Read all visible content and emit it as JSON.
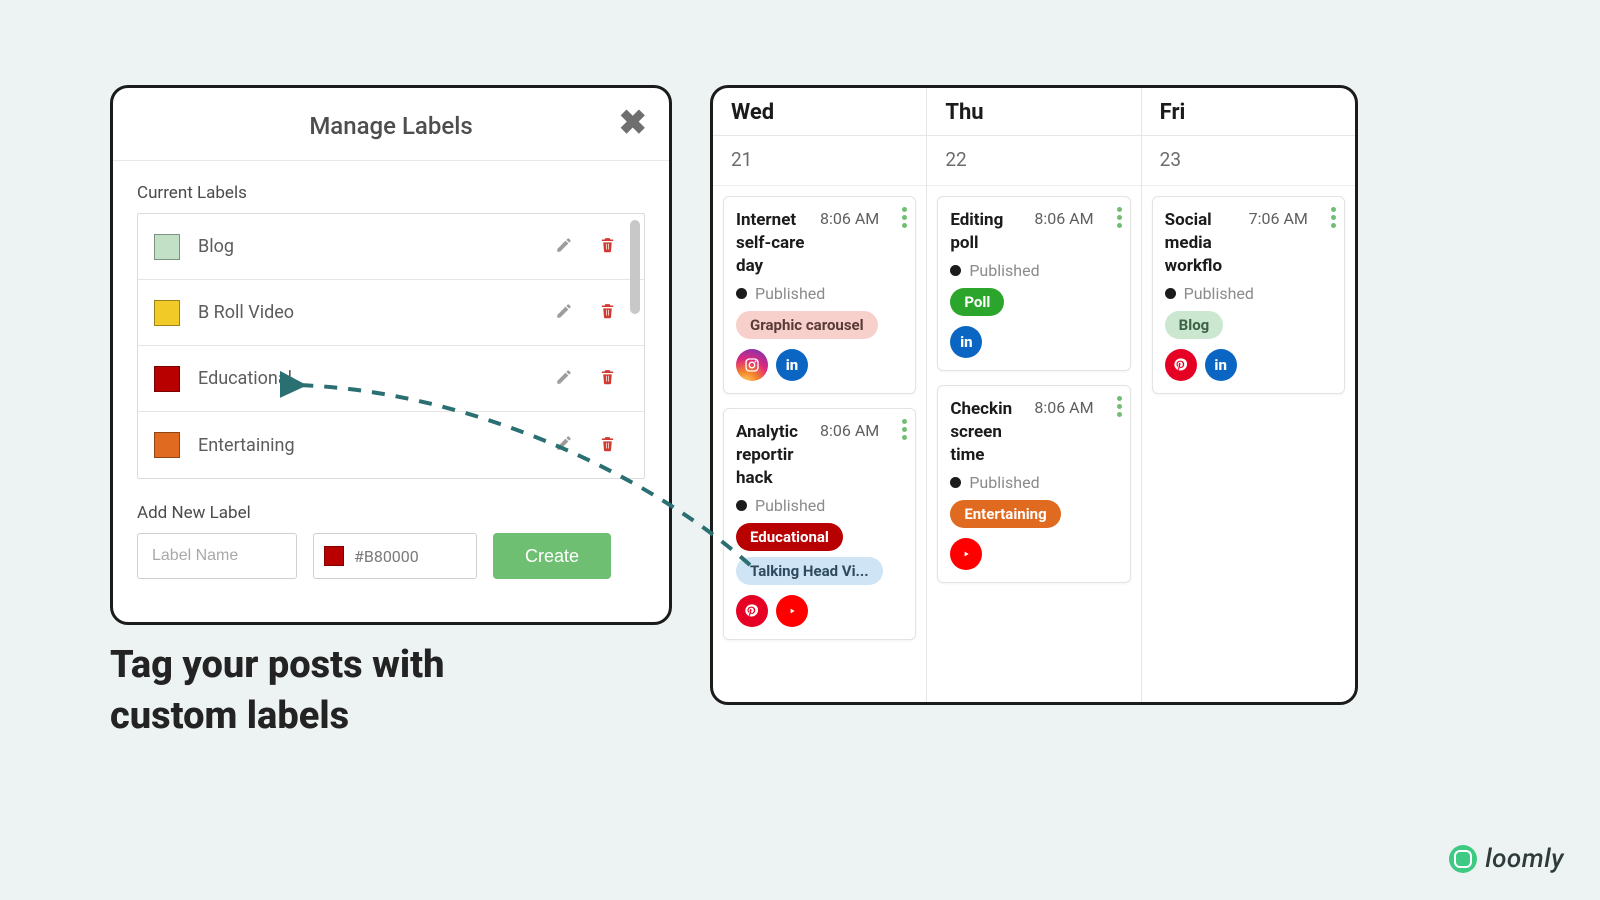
{
  "labels": {
    "title": "Manage Labels",
    "currentHeading": "Current Labels",
    "list": [
      {
        "name": "Blog",
        "color": "#c2e0c6"
      },
      {
        "name": "B Roll Video",
        "color": "#f2ca27"
      },
      {
        "name": "Educational",
        "color": "#b80000"
      },
      {
        "name": "Entertaining",
        "color": "#e06a1f"
      }
    ],
    "addHeading": "Add New Label",
    "namePlaceholder": "Label Name",
    "colorValue": "#B80000",
    "createLabel": "Create"
  },
  "caption": "Tag your posts with custom labels",
  "calendar": {
    "columns": [
      {
        "day": "Wed",
        "date": "21",
        "posts": [
          {
            "title": "Internet self-care day",
            "time": "8:06 AM",
            "status": "Published",
            "tags": [
              {
                "text": "Graphic carousel",
                "bg": "#f7d0cc",
                "fg": "#5a3a38"
              }
            ],
            "channels": [
              "instagram",
              "linkedin"
            ]
          },
          {
            "title": "Analytic reportir hack",
            "time": "8:06 AM",
            "status": "Published",
            "tags": [
              {
                "text": "Educational",
                "bg": "#b80000",
                "fg": "#ffffff"
              },
              {
                "text": "Talking Head Vi...",
                "bg": "#cfe4f4",
                "fg": "#2f4a5e"
              }
            ],
            "channels": [
              "pinterest",
              "youtube"
            ]
          }
        ]
      },
      {
        "day": "Thu",
        "date": "22",
        "posts": [
          {
            "title": "Editing poll",
            "time": "8:06 AM",
            "status": "Published",
            "tags": [
              {
                "text": "Poll",
                "bg": "#2ca52c",
                "fg": "#ffffff"
              }
            ],
            "channels": [
              "linkedin"
            ]
          },
          {
            "title": "Checkin screen time",
            "time": "8:06 AM",
            "status": "Published",
            "tags": [
              {
                "text": "Entertaining",
                "bg": "#e06a1f",
                "fg": "#ffffff"
              }
            ],
            "channels": [
              "youtube"
            ]
          }
        ]
      },
      {
        "day": "Fri",
        "date": "23",
        "posts": [
          {
            "title": "Social media workflo",
            "time": "7:06 AM",
            "status": "Published",
            "tags": [
              {
                "text": "Blog",
                "bg": "#cbe7cf",
                "fg": "#3d6245"
              }
            ],
            "channels": [
              "pinterest",
              "linkedin"
            ]
          }
        ]
      }
    ]
  },
  "arrow": {
    "stroke": "#2a6f71"
  },
  "brand": {
    "name": "loomly"
  }
}
